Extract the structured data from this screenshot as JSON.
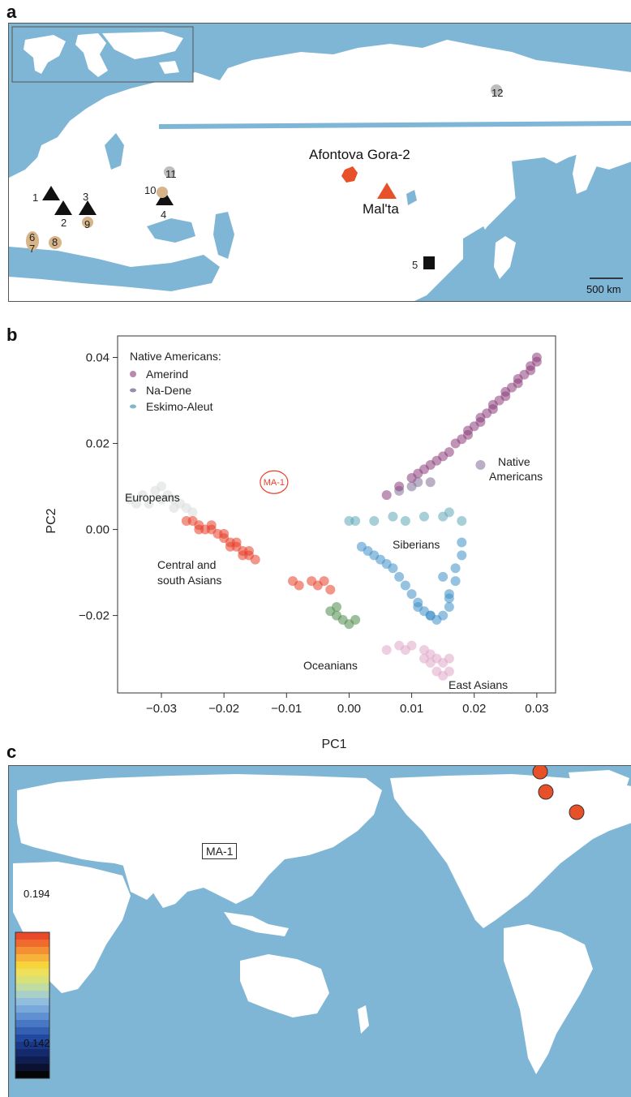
{
  "panels": {
    "a": {
      "letter": "a",
      "sites": [
        {
          "label": "Afontova Gora-2"
        },
        {
          "label": "Mal'ta"
        }
      ],
      "site_numbers": [
        "1",
        "2",
        "3",
        "4",
        "5",
        "6",
        "7",
        "8",
        "9",
        "10",
        "11",
        "12"
      ],
      "scale_bar": "500 km",
      "colors": {
        "sea": "#7fb6d6",
        "land": "#ffffff",
        "highlight": "#e8502a",
        "tan": "#d8b48a",
        "grey": "#bdbdbd"
      }
    },
    "b": {
      "letter": "b",
      "legend_title": "Native Americans:",
      "legend": [
        {
          "label": "Amerind",
          "color": "#a86a9a"
        },
        {
          "label": "Na-Dene",
          "color": "#7f6f98"
        },
        {
          "label": "Eskimo-Aleut",
          "color": "#5fa8b8"
        }
      ],
      "group_labels": [
        "Europeans",
        "Central and",
        "south Asians",
        "Oceanians",
        "East Asians",
        "Siberians",
        "Native",
        "Americans"
      ],
      "ma1_label": "MA-1"
    },
    "c": {
      "letter": "c",
      "ma1_label": "MA-1",
      "color_scale": {
        "max": "0.194",
        "min": "0.142"
      }
    }
  },
  "chart_data": {
    "type": "scatter",
    "xlabel": "PC1",
    "ylabel": "PC2",
    "xlim": [
      -0.037,
      0.033
    ],
    "ylim": [
      -0.038,
      0.045
    ],
    "x_ticks": [
      "−0.03",
      "−0.02",
      "−0.01",
      "0.00",
      "0.01",
      "0.02",
      "0.03"
    ],
    "x_tick_values": [
      -0.03,
      -0.02,
      -0.01,
      0.0,
      0.01,
      0.02,
      0.03
    ],
    "y_ticks": [
      "0.04",
      "0.02",
      "0.00",
      "−0.02"
    ],
    "y_tick_values": [
      0.04,
      0.02,
      0.0,
      -0.02
    ],
    "series": [
      {
        "name": "Europeans",
        "color": "#d8dcdc",
        "points": [
          [
            -0.035,
            0.007
          ],
          [
            -0.033,
            0.008
          ],
          [
            -0.031,
            0.009
          ],
          [
            -0.03,
            0.01
          ],
          [
            -0.029,
            0.008
          ],
          [
            -0.028,
            0.007
          ],
          [
            -0.027,
            0.006
          ],
          [
            -0.026,
            0.005
          ],
          [
            -0.032,
            0.006
          ],
          [
            -0.03,
            0.007
          ],
          [
            -0.034,
            0.006
          ],
          [
            -0.028,
            0.005
          ],
          [
            -0.025,
            0.004
          ]
        ]
      },
      {
        "name": "Central and south Asians",
        "color": "#e8402a",
        "points": [
          [
            -0.026,
            0.002
          ],
          [
            -0.025,
            0.002
          ],
          [
            -0.024,
            0.001
          ],
          [
            -0.023,
            0.0
          ],
          [
            -0.022,
            0.0
          ],
          [
            -0.021,
            -0.001
          ],
          [
            -0.02,
            -0.002
          ],
          [
            -0.019,
            -0.003
          ],
          [
            -0.018,
            -0.004
          ],
          [
            -0.017,
            -0.005
          ],
          [
            -0.016,
            -0.006
          ],
          [
            -0.015,
            -0.007
          ],
          [
            -0.022,
            0.001
          ],
          [
            -0.02,
            -0.001
          ],
          [
            -0.018,
            -0.003
          ],
          [
            -0.016,
            -0.005
          ],
          [
            -0.024,
            0.0
          ],
          [
            -0.019,
            -0.004
          ],
          [
            -0.017,
            -0.006
          ],
          [
            -0.006,
            -0.012
          ],
          [
            -0.005,
            -0.013
          ],
          [
            -0.004,
            -0.012
          ],
          [
            -0.003,
            -0.014
          ],
          [
            -0.009,
            -0.012
          ],
          [
            -0.008,
            -0.013
          ]
        ]
      },
      {
        "name": "Oceanians",
        "color": "#4e8a4a",
        "points": [
          [
            -0.003,
            -0.019
          ],
          [
            -0.002,
            -0.02
          ],
          [
            -0.001,
            -0.021
          ],
          [
            0.0,
            -0.022
          ],
          [
            -0.002,
            -0.018
          ],
          [
            0.001,
            -0.021
          ]
        ]
      },
      {
        "name": "East Asians",
        "color": "#e0a8c8",
        "points": [
          [
            0.01,
            -0.027
          ],
          [
            0.012,
            -0.028
          ],
          [
            0.013,
            -0.029
          ],
          [
            0.014,
            -0.03
          ],
          [
            0.015,
            -0.031
          ],
          [
            0.014,
            -0.033
          ],
          [
            0.015,
            -0.034
          ],
          [
            0.016,
            -0.03
          ],
          [
            0.013,
            -0.031
          ],
          [
            0.012,
            -0.03
          ],
          [
            0.016,
            -0.033
          ],
          [
            0.009,
            -0.028
          ],
          [
            0.008,
            -0.027
          ],
          [
            0.006,
            -0.028
          ]
        ]
      },
      {
        "name": "Siberians",
        "color": "#3f8fc8",
        "points": [
          [
            0.002,
            -0.004
          ],
          [
            0.003,
            -0.005
          ],
          [
            0.005,
            -0.007
          ],
          [
            0.007,
            -0.009
          ],
          [
            0.008,
            -0.011
          ],
          [
            0.009,
            -0.013
          ],
          [
            0.01,
            -0.015
          ],
          [
            0.011,
            -0.017
          ],
          [
            0.012,
            -0.019
          ],
          [
            0.013,
            -0.02
          ],
          [
            0.014,
            -0.021
          ],
          [
            0.015,
            -0.02
          ],
          [
            0.016,
            -0.018
          ],
          [
            0.016,
            -0.015
          ],
          [
            0.017,
            -0.012
          ],
          [
            0.017,
            -0.009
          ],
          [
            0.018,
            -0.006
          ],
          [
            0.018,
            -0.003
          ],
          [
            0.016,
            -0.016
          ],
          [
            0.015,
            -0.011
          ],
          [
            0.011,
            -0.018
          ],
          [
            0.006,
            -0.008
          ],
          [
            0.004,
            -0.006
          ],
          [
            0.013,
            -0.02
          ]
        ]
      },
      {
        "name": "Eskimo-Aleut",
        "color": "#5fa8b8",
        "points": [
          [
            0.0,
            0.002
          ],
          [
            0.001,
            0.002
          ],
          [
            0.004,
            0.002
          ],
          [
            0.007,
            0.003
          ],
          [
            0.009,
            0.002
          ],
          [
            0.012,
            0.003
          ],
          [
            0.015,
            0.003
          ],
          [
            0.016,
            0.004
          ],
          [
            0.018,
            0.002
          ]
        ]
      },
      {
        "name": "Na-Dene",
        "color": "#7f6f98",
        "points": [
          [
            0.008,
            0.009
          ],
          [
            0.01,
            0.01
          ],
          [
            0.011,
            0.011
          ],
          [
            0.013,
            0.011
          ],
          [
            0.021,
            0.015
          ]
        ]
      },
      {
        "name": "Amerind",
        "color": "#8a3c7a",
        "points": [
          [
            0.006,
            0.008
          ],
          [
            0.008,
            0.01
          ],
          [
            0.01,
            0.012
          ],
          [
            0.012,
            0.014
          ],
          [
            0.014,
            0.016
          ],
          [
            0.016,
            0.018
          ],
          [
            0.018,
            0.021
          ],
          [
            0.019,
            0.023
          ],
          [
            0.02,
            0.024
          ],
          [
            0.021,
            0.026
          ],
          [
            0.022,
            0.027
          ],
          [
            0.023,
            0.029
          ],
          [
            0.024,
            0.03
          ],
          [
            0.025,
            0.032
          ],
          [
            0.026,
            0.033
          ],
          [
            0.027,
            0.035
          ],
          [
            0.028,
            0.036
          ],
          [
            0.029,
            0.037
          ],
          [
            0.03,
            0.039
          ],
          [
            0.03,
            0.04
          ],
          [
            0.029,
            0.038
          ],
          [
            0.027,
            0.034
          ],
          [
            0.025,
            0.031
          ],
          [
            0.023,
            0.028
          ],
          [
            0.021,
            0.025
          ],
          [
            0.019,
            0.022
          ],
          [
            0.017,
            0.02
          ],
          [
            0.015,
            0.017
          ],
          [
            0.013,
            0.015
          ],
          [
            0.011,
            0.013
          ]
        ]
      },
      {
        "name": "MA-1",
        "color": "#e8402a",
        "points": [
          [
            -0.012,
            0.011
          ]
        ]
      }
    ]
  }
}
